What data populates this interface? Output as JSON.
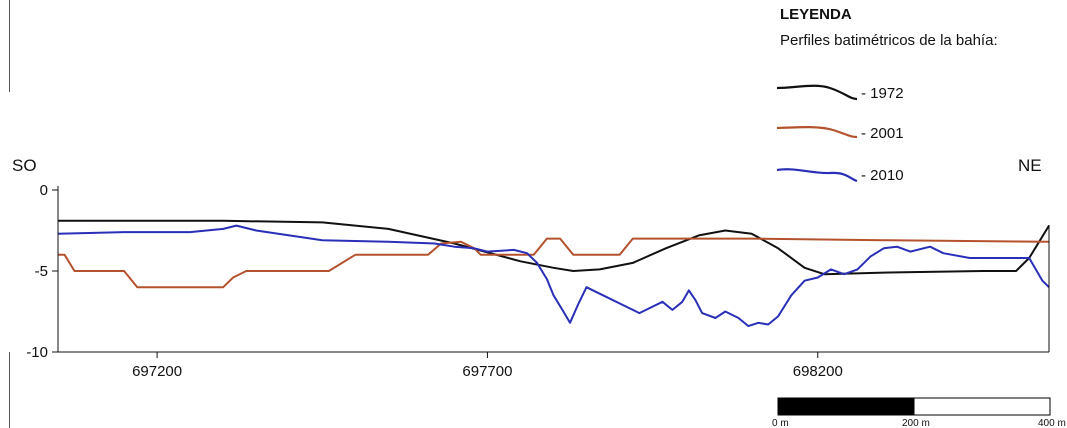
{
  "legend": {
    "title": "LEYENDA",
    "subtitle": "Perfiles batimétricos de la bahía:"
  },
  "direction": {
    "left": "SO",
    "right": "NE"
  },
  "scalebar": {
    "labels": [
      "0 m",
      "200 m",
      "400 m"
    ]
  },
  "colors": {
    "1972": "#111111",
    "2001": "#b5522e",
    "2010": "#2a2fb8"
  },
  "chart_data": {
    "type": "line",
    "title": "",
    "xlabel": "",
    "ylabel": "",
    "xlim": [
      697050,
      698550
    ],
    "ylim": [
      -10,
      0
    ],
    "x_ticks": [
      697200,
      697700,
      698200
    ],
    "y_ticks": [
      0,
      -5,
      -10
    ],
    "y_tick_labels": [
      "0",
      "-5",
      "-10"
    ],
    "legend_position": "top-right",
    "grid": false,
    "series": [
      {
        "name": "- 1972",
        "color": "#111111",
        "points": [
          [
            697050,
            -1.9
          ],
          [
            697300,
            -1.9
          ],
          [
            697450,
            -2.0
          ],
          [
            697550,
            -2.4
          ],
          [
            697650,
            -3.3
          ],
          [
            697750,
            -4.4
          ],
          [
            697800,
            -4.8
          ],
          [
            697830,
            -5.0
          ],
          [
            697870,
            -4.9
          ],
          [
            697920,
            -4.5
          ],
          [
            697970,
            -3.6
          ],
          [
            698020,
            -2.8
          ],
          [
            698060,
            -2.5
          ],
          [
            698100,
            -2.7
          ],
          [
            698140,
            -3.6
          ],
          [
            698180,
            -4.8
          ],
          [
            698210,
            -5.2
          ],
          [
            698300,
            -5.1
          ],
          [
            698450,
            -5.0
          ],
          [
            698500,
            -5.0
          ],
          [
            698520,
            -4.2
          ],
          [
            698550,
            -2.2
          ]
        ]
      },
      {
        "name": "- 2001",
        "color": "#b5522e",
        "points": [
          [
            697050,
            -4.0
          ],
          [
            697060,
            -4.0
          ],
          [
            697075,
            -5.0
          ],
          [
            697150,
            -5.0
          ],
          [
            697170,
            -6.0
          ],
          [
            697300,
            -6.0
          ],
          [
            697315,
            -5.4
          ],
          [
            697335,
            -5.0
          ],
          [
            697460,
            -5.0
          ],
          [
            697500,
            -4.0
          ],
          [
            697610,
            -4.0
          ],
          [
            697630,
            -3.3
          ],
          [
            697660,
            -3.2
          ],
          [
            697680,
            -3.6
          ],
          [
            697690,
            -4.0
          ],
          [
            697770,
            -4.0
          ],
          [
            697790,
            -3.0
          ],
          [
            697810,
            -3.0
          ],
          [
            697830,
            -4.0
          ],
          [
            697900,
            -4.0
          ],
          [
            697920,
            -3.0
          ],
          [
            698100,
            -3.0
          ],
          [
            698300,
            -3.1
          ],
          [
            698550,
            -3.2
          ]
        ]
      },
      {
        "name": "- 2010",
        "color": "#2a2fb8",
        "points": [
          [
            697050,
            -2.7
          ],
          [
            697150,
            -2.6
          ],
          [
            697250,
            -2.6
          ],
          [
            697300,
            -2.4
          ],
          [
            697320,
            -2.2
          ],
          [
            697350,
            -2.5
          ],
          [
            697400,
            -2.8
          ],
          [
            697450,
            -3.1
          ],
          [
            697550,
            -3.2
          ],
          [
            697620,
            -3.3
          ],
          [
            697650,
            -3.5
          ],
          [
            697680,
            -3.6
          ],
          [
            697700,
            -3.8
          ],
          [
            697740,
            -3.7
          ],
          [
            697760,
            -3.9
          ],
          [
            697775,
            -4.5
          ],
          [
            697790,
            -5.5
          ],
          [
            697800,
            -6.5
          ],
          [
            697815,
            -7.5
          ],
          [
            697825,
            -8.2
          ],
          [
            697838,
            -7.0
          ],
          [
            697850,
            -6.0
          ],
          [
            697870,
            -6.4
          ],
          [
            697890,
            -6.8
          ],
          [
            697910,
            -7.2
          ],
          [
            697930,
            -7.6
          ],
          [
            697950,
            -7.2
          ],
          [
            697965,
            -6.9
          ],
          [
            697980,
            -7.4
          ],
          [
            697995,
            -6.9
          ],
          [
            698005,
            -6.2
          ],
          [
            698015,
            -6.8
          ],
          [
            698025,
            -7.6
          ],
          [
            698045,
            -7.9
          ],
          [
            698060,
            -7.5
          ],
          [
            698080,
            -7.9
          ],
          [
            698095,
            -8.4
          ],
          [
            698110,
            -8.2
          ],
          [
            698125,
            -8.3
          ],
          [
            698140,
            -7.8
          ],
          [
            698160,
            -6.5
          ],
          [
            698180,
            -5.6
          ],
          [
            698200,
            -5.4
          ],
          [
            698220,
            -4.9
          ],
          [
            698240,
            -5.2
          ],
          [
            698260,
            -4.9
          ],
          [
            698280,
            -4.1
          ],
          [
            698300,
            -3.6
          ],
          [
            698320,
            -3.5
          ],
          [
            698340,
            -3.8
          ],
          [
            698370,
            -3.5
          ],
          [
            698390,
            -3.9
          ],
          [
            698430,
            -4.2
          ],
          [
            698480,
            -4.2
          ],
          [
            698520,
            -4.2
          ],
          [
            698540,
            -5.6
          ],
          [
            698550,
            -6.0
          ]
        ]
      }
    ]
  }
}
